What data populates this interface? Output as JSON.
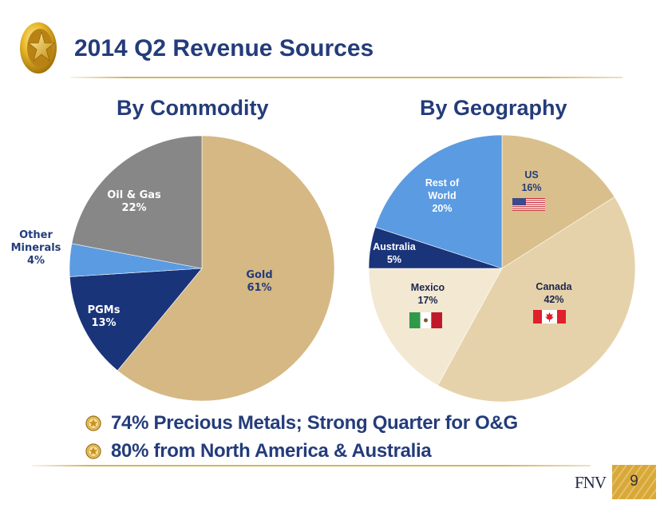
{
  "header": {
    "logo_icon": "gold-star-coin-icon",
    "title": "2014 Q2 Revenue Sources"
  },
  "sections": {
    "commodity_heading": "By Commodity",
    "geography_heading": "By Geography"
  },
  "colors": {
    "title_blue": "#243c7a",
    "gold": "#d5b883",
    "oil_gas_gray": "#878787",
    "other_minerals_blue": "#5b9be1",
    "pgms_navy": "#1a347a",
    "us_tan": "#d9bf8c",
    "canada_beige": "#e6d2aa",
    "mexico_cream": "#f3e8d2",
    "australia_navy": "#1a347a",
    "rest_of_world_blue": "#5b9be1",
    "rule_gold": "#d6b464"
  },
  "chart_data": [
    {
      "type": "pie",
      "title": "By Commodity",
      "start_angle": "12 o'clock, clockwise",
      "slices": [
        {
          "label": "Gold",
          "value": 61,
          "display": "61%",
          "color": "#d5b883",
          "label_color": "#243c7a"
        },
        {
          "label": "PGMs",
          "value": 13,
          "display": "13%",
          "color": "#1a347a",
          "label_color": "#ffffff"
        },
        {
          "label": "Other Minerals",
          "value": 4,
          "display": "4%",
          "color": "#5b9be1",
          "label_color": "#243c7a",
          "label_outside": true
        },
        {
          "label": "Oil & Gas",
          "value": 22,
          "display": "22%",
          "color": "#878787",
          "label_color": "#ffffff"
        }
      ]
    },
    {
      "type": "pie",
      "title": "By Geography",
      "start_angle": "12 o'clock, clockwise",
      "slices": [
        {
          "label": "US",
          "value": 16,
          "display": "16%",
          "color": "#d9bf8c",
          "label_color": "#243c7a",
          "flag": "us-flag-icon"
        },
        {
          "label": "Canada",
          "value": 42,
          "display": "42%",
          "color": "#e6d2aa",
          "label_color": "#1a2550",
          "flag": "canada-flag-icon"
        },
        {
          "label": "Mexico",
          "value": 17,
          "display": "17%",
          "color": "#f3e8d2",
          "label_color": "#1a2550",
          "flag": "mexico-flag-icon"
        },
        {
          "label": "Australia",
          "value": 5,
          "display": "5%",
          "color": "#1a347a",
          "label_color": "#ffffff"
        },
        {
          "label": "Rest of World",
          "value": 20,
          "display": "20%",
          "color": "#5b9be1",
          "label_color": "#ffffff",
          "label_lines": [
            "Rest of",
            "World"
          ]
        }
      ]
    }
  ],
  "bullets": [
    {
      "icon": "star-bullet-icon",
      "text": "74% Precious Metals; Strong Quarter for O&G"
    },
    {
      "icon": "star-bullet-icon",
      "text": "80% from North America & Australia"
    }
  ],
  "footer": {
    "brand": "FNV",
    "page_number": "9"
  }
}
